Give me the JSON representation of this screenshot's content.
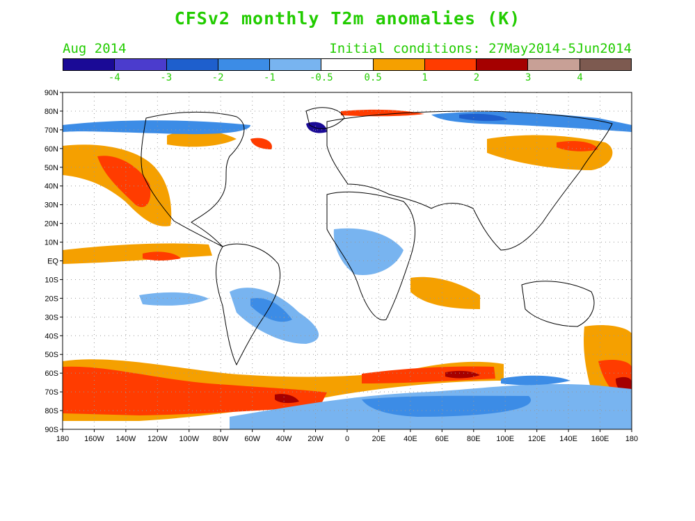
{
  "title": "CFSv2 monthly T2m anomalies (K)",
  "valid_month": "Aug 2014",
  "initial_conditions": "Initial conditions: 27May2014-5Jun2014",
  "colorbar": {
    "colors": [
      "#1a0a96",
      "#4b3ccd",
      "#1e5fcd",
      "#3c8ce6",
      "#78b4f0",
      "#ffffff",
      "#f5a000",
      "#ff3c00",
      "#a50000",
      "#c8a096",
      "#7d5a50"
    ],
    "labels": [
      "-4",
      "-3",
      "-2",
      "-1",
      "-0.5",
      "0.5",
      "1",
      "2",
      "3",
      "4"
    ]
  },
  "lat_labels": [
    "90N",
    "80N",
    "70N",
    "60N",
    "50N",
    "40N",
    "30N",
    "20N",
    "10N",
    "EQ",
    "10S",
    "20S",
    "30S",
    "40S",
    "50S",
    "60S",
    "70S",
    "80S",
    "90S"
  ],
  "lon_labels": [
    "180",
    "160W",
    "140W",
    "120W",
    "100W",
    "80W",
    "60W",
    "40W",
    "20W",
    "0",
    "20E",
    "40E",
    "60E",
    "80E",
    "100E",
    "120E",
    "140E",
    "160E",
    "180"
  ]
}
